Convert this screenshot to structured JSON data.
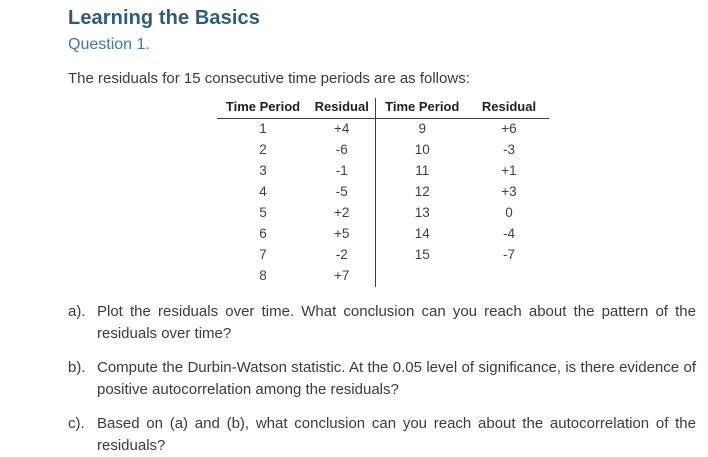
{
  "page": {
    "title": "Learning the Basics",
    "subtitle": "Question 1.",
    "intro": "The residuals for 15 consecutive time periods are as follows:"
  },
  "colors": {
    "title_blue": "#2e5c80",
    "subtitle_blue": "#4377a6",
    "body_text": "#3b3b3b",
    "table_line": "#3f3f3f"
  },
  "table": {
    "headers": [
      "Time Period",
      "Residual",
      "Time Period",
      "Residual"
    ],
    "rows": [
      {
        "tp1": "1",
        "res1": "+4",
        "tp2": "9",
        "res2": "+6"
      },
      {
        "tp1": "2",
        "res1": "-6",
        "tp2": "10",
        "res2": "-3"
      },
      {
        "tp1": "3",
        "res1": "-1",
        "tp2": "11",
        "res2": "+1"
      },
      {
        "tp1": "4",
        "res1": "-5",
        "tp2": "12",
        "res2": "+3"
      },
      {
        "tp1": "5",
        "res1": "+2",
        "tp2": "13",
        "res2": "0"
      },
      {
        "tp1": "6",
        "res1": "+5",
        "tp2": "14",
        "res2": "-4"
      },
      {
        "tp1": "7",
        "res1": "-2",
        "tp2": "15",
        "res2": "-7"
      },
      {
        "tp1": "8",
        "res1": "+7",
        "tp2": "",
        "res2": ""
      }
    ]
  },
  "questions": [
    {
      "label": "a).",
      "text": "Plot the residuals over time. What conclusion can you reach about the pattern of the residuals over time?"
    },
    {
      "label": "b).",
      "text": "Compute the Durbin-Watson statistic. At the 0.05 level of significance, is there evidence of positive autocorrelation among the residuals?"
    },
    {
      "label": "c).",
      "text": "Based on (a) and (b), what conclusion can you reach about the autocorrelation of the residuals?"
    }
  ]
}
